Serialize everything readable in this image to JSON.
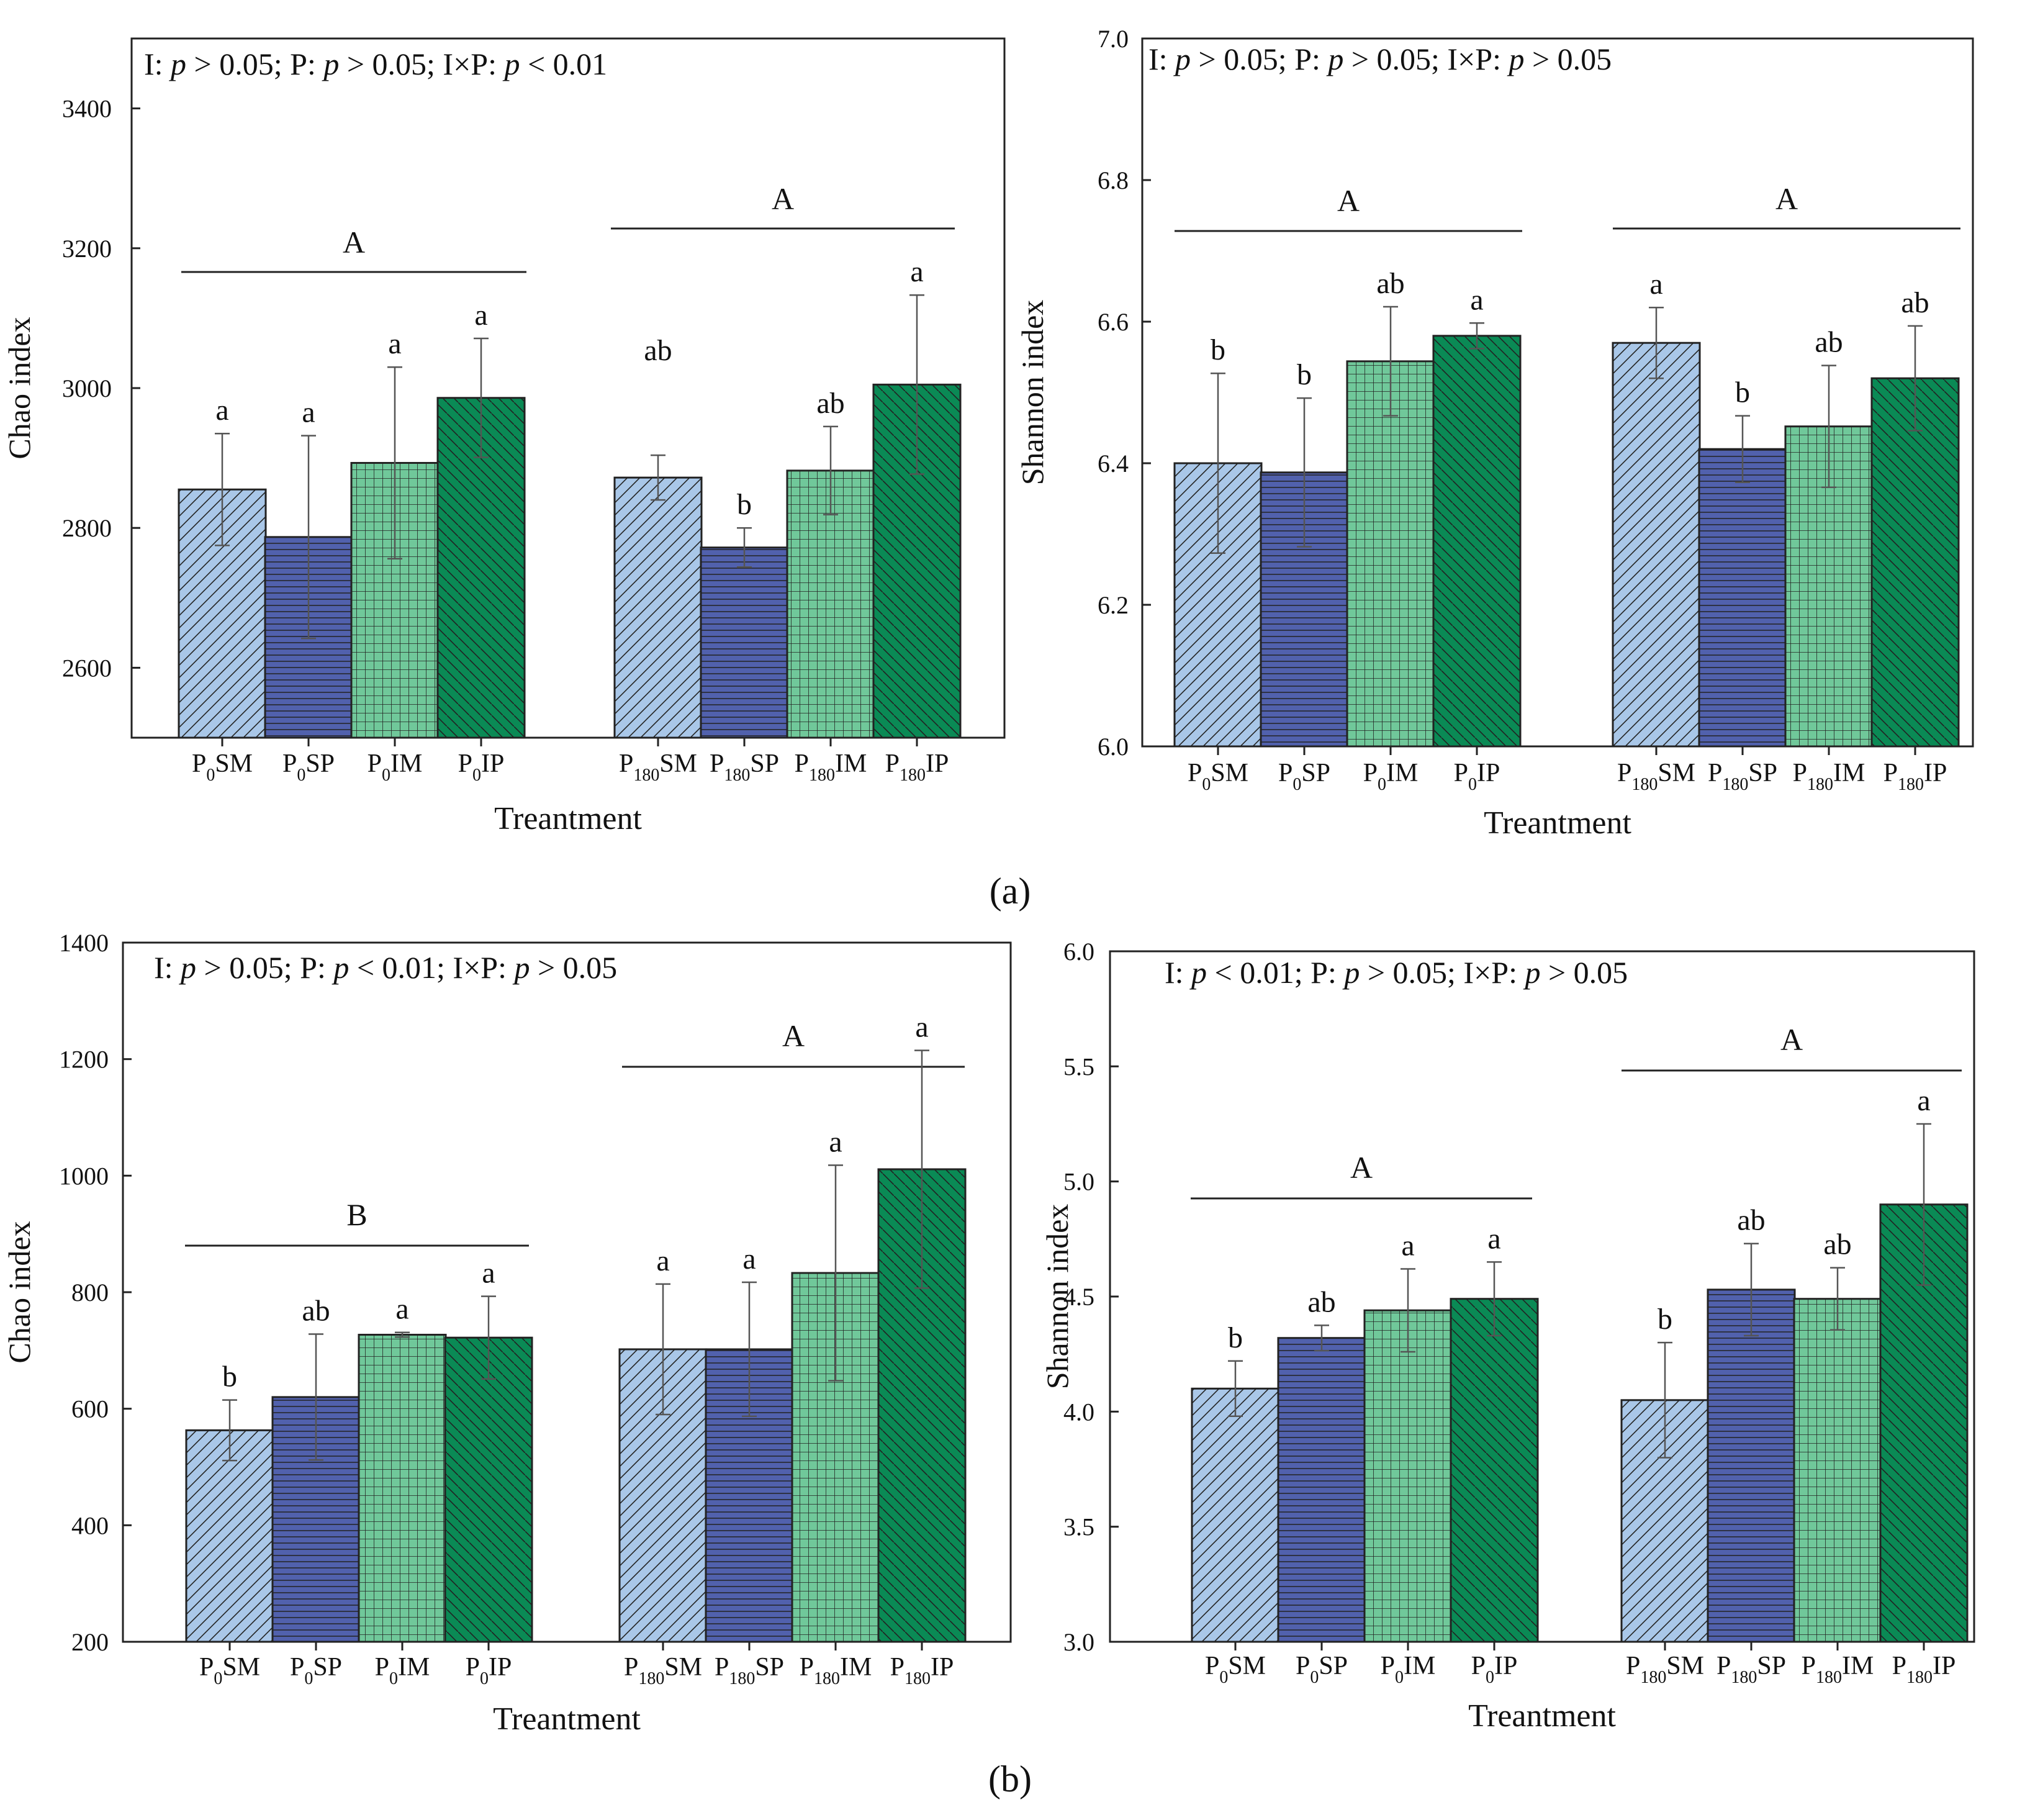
{
  "figure": {
    "panel_labels": [
      "(a)",
      "(b)"
    ]
  },
  "pattern_colors": {
    "SM": "#a9c7e8",
    "SP": "#5161ad",
    "IM": "#70c89a",
    "IP": "#0a8a55",
    "line": "#222222",
    "text": "#111111"
  },
  "chart_data": [
    {
      "id": "a-left",
      "type": "bar",
      "xlabel": "Treantment",
      "ylabel": "Chao index",
      "ylim": [
        2500,
        3500
      ],
      "yticks": [
        2600,
        2800,
        3000,
        3200,
        3400
      ],
      "annotation": {
        "parts": [
          {
            "text": "I: ",
            "italic": false
          },
          {
            "text": "p",
            "italic": true
          },
          {
            "text": " > 0.05; P: ",
            "italic": false
          },
          {
            "text": "p",
            "italic": true
          },
          {
            "text": " > 0.05; I×P: ",
            "italic": false
          },
          {
            "text": "p",
            "italic": true
          },
          {
            "text": " < 0.01",
            "italic": false
          }
        ]
      },
      "groups": [
        {
          "letter": "A",
          "bars": [
            {
              "label": "P0SM",
              "pre": "P",
              "sub": "0",
              "post": "SM",
              "treatment": "SM",
              "value": 2855,
              "err": 80,
              "sig": "a"
            },
            {
              "label": "P0SP",
              "pre": "P",
              "sub": "0",
              "post": "SP",
              "treatment": "SP",
              "value": 2787,
              "err": 145,
              "sig": "a"
            },
            {
              "label": "P0IM",
              "pre": "P",
              "sub": "0",
              "post": "IM",
              "treatment": "IM",
              "value": 2893,
              "err": 137,
              "sig": "a"
            },
            {
              "label": "P0IP",
              "pre": "P",
              "sub": "0",
              "post": "IP",
              "treatment": "IP",
              "value": 2986,
              "err": 85,
              "sig": "a"
            }
          ]
        },
        {
          "letter": "A",
          "bars": [
            {
              "label": "P180SM",
              "pre": "P",
              "sub": "180",
              "post": "SM",
              "treatment": "SM",
              "value": 2872,
              "err": 32,
              "sig": "ab",
              "sig_value": 3040
            },
            {
              "label": "P180SP",
              "pre": "P",
              "sub": "180",
              "post": "SP",
              "treatment": "SP",
              "value": 2772,
              "err": 28,
              "sig": "b"
            },
            {
              "label": "P180IM",
              "pre": "P",
              "sub": "180",
              "post": "IM",
              "treatment": "IM",
              "value": 2882,
              "err": 63,
              "sig": "ab"
            },
            {
              "label": "P180IP",
              "pre": "P",
              "sub": "180",
              "post": "IP",
              "treatment": "IP",
              "value": 3005,
              "err": 128,
              "sig": "a"
            }
          ]
        }
      ]
    },
    {
      "id": "a-right",
      "type": "bar",
      "xlabel": "Treantment",
      "ylabel": "Shannon index",
      "ylim": [
        6.0,
        7.0
      ],
      "yticks": [
        6.0,
        6.2,
        6.4,
        6.6,
        6.8,
        7.0
      ],
      "annotation": {
        "parts": [
          {
            "text": "I: ",
            "italic": false
          },
          {
            "text": "p",
            "italic": true
          },
          {
            "text": " > 0.05; P: ",
            "italic": false
          },
          {
            "text": "p",
            "italic": true
          },
          {
            "text": " > 0.05; I×P: ",
            "italic": false
          },
          {
            "text": "p",
            "italic": true
          },
          {
            "text": " > 0.05",
            "italic": false
          }
        ]
      },
      "groups": [
        {
          "letter": "A",
          "bars": [
            {
              "label": "P0SM",
              "pre": "P",
              "sub": "0",
              "post": "SM",
              "treatment": "SM",
              "value": 6.4,
              "err": 0.127,
              "sig": "b"
            },
            {
              "label": "P0SP",
              "pre": "P",
              "sub": "0",
              "post": "SP",
              "treatment": "SP",
              "value": 6.387,
              "err": 0.105,
              "sig": "b"
            },
            {
              "label": "P0IM",
              "pre": "P",
              "sub": "0",
              "post": "IM",
              "treatment": "IM",
              "value": 6.544,
              "err": 0.077,
              "sig": "ab"
            },
            {
              "label": "P0IP",
              "pre": "P",
              "sub": "0",
              "post": "IP",
              "treatment": "IP",
              "value": 6.58,
              "err": 0.018,
              "sig": "a"
            }
          ]
        },
        {
          "letter": "A",
          "bars": [
            {
              "label": "P180SM",
              "pre": "P",
              "sub": "180",
              "post": "SM",
              "treatment": "SM",
              "value": 6.57,
              "err": 0.05,
              "sig": "a"
            },
            {
              "label": "P180SP",
              "pre": "P",
              "sub": "180",
              "post": "SP",
              "treatment": "SP",
              "value": 6.42,
              "err": 0.047,
              "sig": "b"
            },
            {
              "label": "P180IM",
              "pre": "P",
              "sub": "180",
              "post": "IM",
              "treatment": "IM",
              "value": 6.452,
              "err": 0.086,
              "sig": "ab"
            },
            {
              "label": "P180IP",
              "pre": "P",
              "sub": "180",
              "post": "IP",
              "treatment": "IP",
              "value": 6.52,
              "err": 0.074,
              "sig": "ab"
            }
          ]
        }
      ]
    },
    {
      "id": "b-left",
      "type": "bar",
      "xlabel": "Treantment",
      "ylabel": "Chao index",
      "ylim": [
        200,
        1400
      ],
      "yticks": [
        200,
        400,
        600,
        800,
        1000,
        1200,
        1400
      ],
      "annotation": {
        "parts": [
          {
            "text": "I: ",
            "italic": false
          },
          {
            "text": "p",
            "italic": true
          },
          {
            "text": " > 0.05; P: ",
            "italic": false
          },
          {
            "text": "p",
            "italic": true
          },
          {
            "text": " < 0.01; I×P: ",
            "italic": false
          },
          {
            "text": "p",
            "italic": true
          },
          {
            "text": " > 0.05",
            "italic": false
          }
        ]
      },
      "groups": [
        {
          "letter": "B",
          "bars": [
            {
              "label": "P0SM",
              "pre": "P",
              "sub": "0",
              "post": "SM",
              "treatment": "SM",
              "value": 563,
              "err": 52,
              "sig": "b"
            },
            {
              "label": "P0SP",
              "pre": "P",
              "sub": "0",
              "post": "SP",
              "treatment": "SP",
              "value": 620,
              "err": 108,
              "sig": "ab"
            },
            {
              "label": "P0IM",
              "pre": "P",
              "sub": "0",
              "post": "IM",
              "treatment": "IM",
              "value": 727,
              "err": 4,
              "sig": "a"
            },
            {
              "label": "P0IP",
              "pre": "P",
              "sub": "0",
              "post": "IP",
              "treatment": "IP",
              "value": 722,
              "err": 71,
              "sig": "a"
            }
          ]
        },
        {
          "letter": "A",
          "bars": [
            {
              "label": "P180SM",
              "pre": "P",
              "sub": "180",
              "post": "SM",
              "treatment": "SM",
              "value": 702,
              "err": 112,
              "sig": "a"
            },
            {
              "label": "P180SP",
              "pre": "P",
              "sub": "180",
              "post": "SP",
              "treatment": "SP",
              "value": 702,
              "err": 115,
              "sig": "a"
            },
            {
              "label": "P180IM",
              "pre": "P",
              "sub": "180",
              "post": "IM",
              "treatment": "IM",
              "value": 833,
              "err": 185,
              "sig": "a"
            },
            {
              "label": "P180IP",
              "pre": "P",
              "sub": "180",
              "post": "IP",
              "treatment": "IP",
              "value": 1011,
              "err": 204,
              "sig": "a"
            }
          ]
        }
      ]
    },
    {
      "id": "b-right",
      "type": "bar",
      "xlabel": "Treantment",
      "ylabel": "Shannon index",
      "ylim": [
        3.0,
        6.0
      ],
      "yticks": [
        3.0,
        3.5,
        4.0,
        4.5,
        5.0,
        5.5,
        6.0
      ],
      "annotation": {
        "parts": [
          {
            "text": "I: ",
            "italic": false
          },
          {
            "text": "p",
            "italic": true
          },
          {
            "text": " < 0.01; P: ",
            "italic": false
          },
          {
            "text": "p",
            "italic": true
          },
          {
            "text": " > 0.05; I×P: ",
            "italic": false
          },
          {
            "text": "p",
            "italic": true
          },
          {
            "text": " > 0.05",
            "italic": false
          }
        ]
      },
      "groups": [
        {
          "letter": "A",
          "bars": [
            {
              "label": "P0SM",
              "pre": "P",
              "sub": "0",
              "post": "SM",
              "treatment": "SM",
              "value": 4.1,
              "err": 0.12,
              "sig": "b"
            },
            {
              "label": "P0SP",
              "pre": "P",
              "sub": "0",
              "post": "SP",
              "treatment": "SP",
              "value": 4.32,
              "err": 0.055,
              "sig": "ab"
            },
            {
              "label": "P0IM",
              "pre": "P",
              "sub": "0",
              "post": "IM",
              "treatment": "IM",
              "value": 4.44,
              "err": 0.18,
              "sig": "a"
            },
            {
              "label": "P0IP",
              "pre": "P",
              "sub": "0",
              "post": "IP",
              "treatment": "IP",
              "value": 4.49,
              "err": 0.16,
              "sig": "a"
            }
          ]
        },
        {
          "letter": "A",
          "bars": [
            {
              "label": "P180SM",
              "pre": "P",
              "sub": "180",
              "post": "SM",
              "treatment": "SM",
              "value": 4.05,
              "err": 0.25,
              "sig": "b"
            },
            {
              "label": "P180SP",
              "pre": "P",
              "sub": "180",
              "post": "SP",
              "treatment": "SP",
              "value": 4.53,
              "err": 0.2,
              "sig": "ab"
            },
            {
              "label": "P180IM",
              "pre": "P",
              "sub": "180",
              "post": "IM",
              "treatment": "IM",
              "value": 4.49,
              "err": 0.135,
              "sig": "ab"
            },
            {
              "label": "P180IP",
              "pre": "P",
              "sub": "180",
              "post": "IP",
              "treatment": "IP",
              "value": 4.9,
              "err": 0.35,
              "sig": "a"
            }
          ]
        }
      ]
    }
  ]
}
